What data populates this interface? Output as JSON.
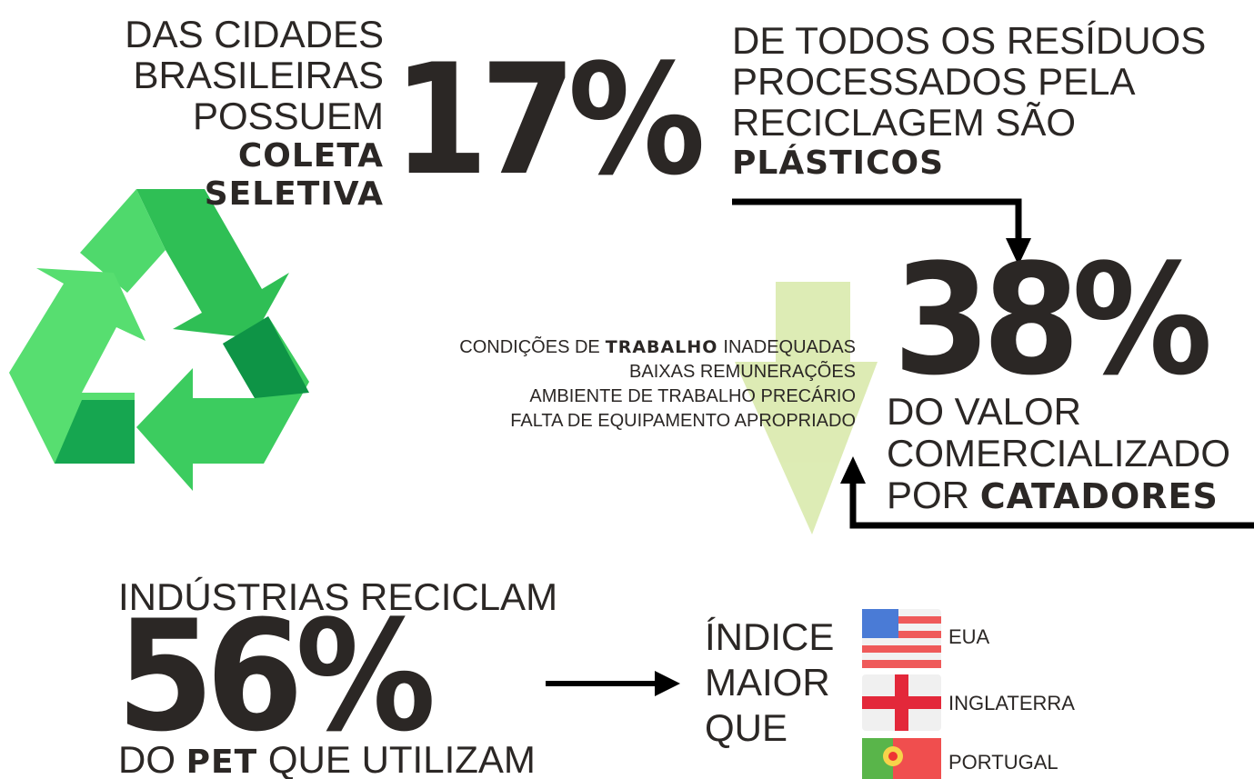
{
  "block1": {
    "lines": [
      "DAS CIDADES",
      "BRASILEIRAS",
      "POSSUEM"
    ],
    "bold_lines": [
      "COLETA",
      "SELETIVA"
    ],
    "figure": "17%"
  },
  "block2": {
    "lines": [
      "DE TODOS OS RESÍDUOS",
      "PROCESSADOS PELA",
      "RECICLAGEM SÃO"
    ],
    "bold": "PLÁSTICOS"
  },
  "block3": {
    "figure": "38%",
    "lines": [
      "DO VALOR",
      "COMERCIALIZADO"
    ],
    "prefix": "POR",
    "bold": "CATADORES"
  },
  "conditions": {
    "first": {
      "before": "CONDIÇÕES DE",
      "bold": "TRABALHO",
      "after": "INADEQUADAS"
    },
    "lines": [
      "BAIXAS REMUNERAÇÕES",
      "AMBIENTE DE TRABALHO PRECÁRIO",
      "FALTA DE EQUIPAMENTO APROPRIADO"
    ]
  },
  "block4": {
    "heading": "INDÚSTRIAS RECICLAM",
    "figure": "56%",
    "prefix": "DO",
    "bold": "PET",
    "suffix": "QUE UTILIZAM"
  },
  "comparison": {
    "label_lines": [
      "ÍNDICE",
      "MAIOR",
      "QUE"
    ],
    "countries": [
      "EUA",
      "INGLATERRA",
      "PORTUGAL"
    ]
  }
}
